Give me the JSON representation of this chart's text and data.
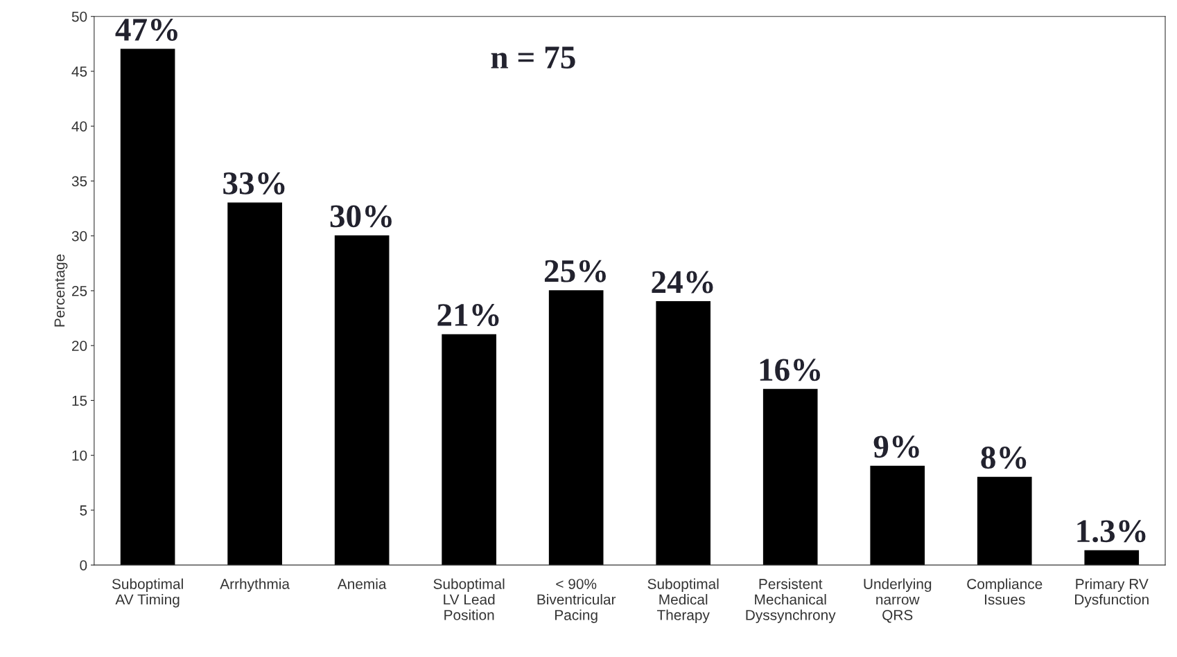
{
  "chart_data": {
    "type": "bar",
    "ylabel": "Percentage",
    "categories": [
      "Suboptimal\nAV Timing",
      "Arrhythmia",
      "Anemia",
      "Suboptimal\nLV Lead\nPosition",
      "< 90%\nBiventricular\nPacing",
      "Suboptimal\nMedical\nTherapy",
      "Persistent\nMechanical\nDyssynchrony",
      "Underlying\nnarrow\nQRS",
      "Compliance\nIssues",
      "Primary RV\nDysfunction"
    ],
    "values": [
      47,
      33,
      30,
      21,
      25,
      24,
      16,
      9,
      8,
      1.3
    ],
    "value_labels": [
      "47%",
      "33%",
      "30%",
      "21%",
      "25%",
      "24%",
      "16%",
      "9%",
      "8%",
      "1.3%"
    ],
    "color": "#000000",
    "ylim": [
      0,
      50
    ],
    "yticks": [
      0,
      5,
      10,
      15,
      20,
      25,
      30,
      35,
      40,
      45,
      50
    ],
    "grid": false,
    "legend": false,
    "annotations": [
      "n = 75"
    ]
  }
}
